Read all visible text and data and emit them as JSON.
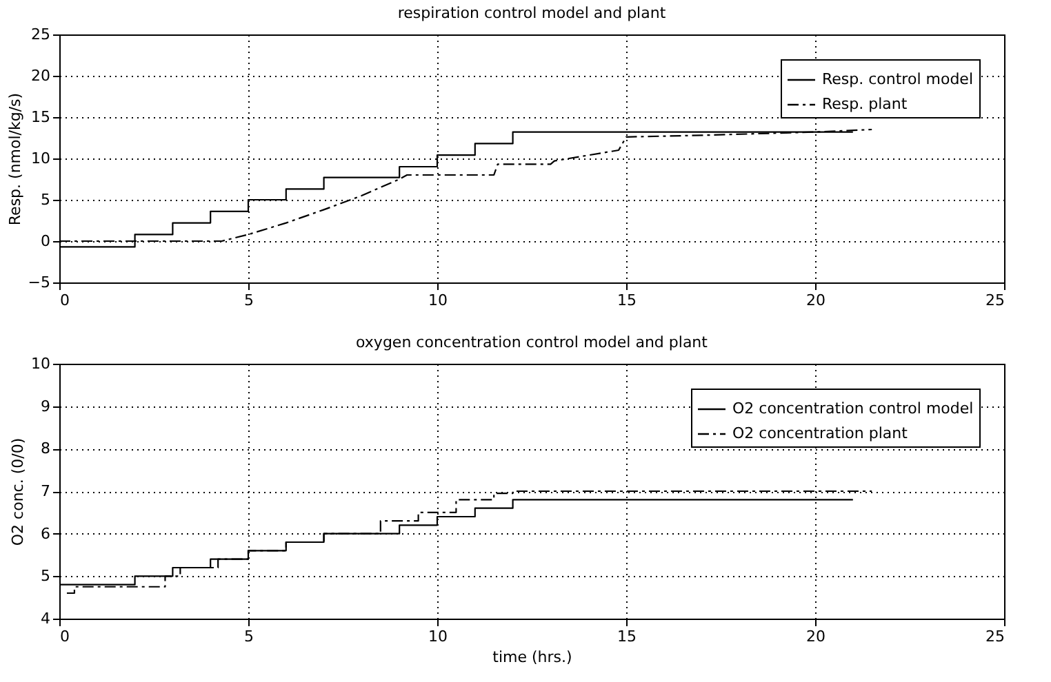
{
  "chart_data": [
    {
      "type": "step",
      "title": "respiration control model and plant",
      "ylabel": "Resp. (nmol/kg/s)",
      "xlim": [
        0,
        25
      ],
      "xticks": [
        0,
        5,
        10,
        15,
        20,
        25
      ],
      "ylim": [
        -5,
        25
      ],
      "yticks": [
        -5,
        0,
        5,
        10,
        15,
        20,
        25
      ],
      "grid": true,
      "legend": "top right",
      "series": [
        {
          "name": "Resp. control model",
          "type": "step",
          "color": "#000000",
          "line_style": "solid",
          "x": [
            0,
            2,
            3,
            4,
            5,
            6,
            7,
            9,
            10,
            11,
            12,
            21
          ],
          "values": [
            -0.7,
            0.8,
            2.2,
            3.6,
            5.0,
            6.3,
            7.7,
            9.0,
            10.4,
            11.8,
            13.2,
            13.2
          ]
        },
        {
          "name": "Resp. plant",
          "type": "line",
          "color": "#000000",
          "line_style": "dashed",
          "x": [
            0,
            4.3,
            5,
            6,
            7,
            8,
            9,
            9.2,
            10.5,
            11.5,
            11.6,
            13,
            13.1,
            14.8,
            15,
            17,
            20,
            21.5
          ],
          "values": [
            0,
            0,
            0.8,
            2.2,
            3.8,
            5.5,
            7.5,
            8,
            8,
            8,
            9.3,
            9.3,
            9.7,
            11,
            12.6,
            12.8,
            13.2,
            13.5
          ]
        }
      ]
    },
    {
      "type": "step",
      "title": "oxygen concentration control model and plant",
      "ylabel": "O2 conc. (0/0)",
      "xlabel": "time (hrs.)",
      "xlim": [
        0,
        25
      ],
      "xticks": [
        0,
        5,
        10,
        15,
        20,
        25
      ],
      "ylim": [
        4,
        10
      ],
      "yticks": [
        4,
        5,
        6,
        7,
        8,
        9,
        10
      ],
      "grid": true,
      "legend": "top right",
      "series": [
        {
          "name": "O2 concentration control model",
          "type": "step",
          "color": "#000000",
          "line_style": "solid",
          "x": [
            0,
            2,
            3,
            4,
            5,
            6,
            7,
            9,
            10,
            11,
            12,
            21
          ],
          "values": [
            4.8,
            5.0,
            5.2,
            5.4,
            5.6,
            5.8,
            6.0,
            6.2,
            6.4,
            6.6,
            6.8,
            6.8
          ]
        },
        {
          "name": "O2 concentration plant",
          "type": "step",
          "color": "#000000",
          "line_style": "dashed",
          "x": [
            0.2,
            0.4,
            2.8,
            3.2,
            4.2,
            5,
            6,
            7,
            8.5,
            9.5,
            10.5,
            11.5,
            12,
            21.5
          ],
          "values": [
            4.6,
            4.75,
            5.0,
            5.2,
            5.4,
            5.6,
            5.8,
            6.0,
            6.3,
            6.5,
            6.8,
            6.95,
            7.0,
            7.0
          ]
        }
      ]
    }
  ]
}
